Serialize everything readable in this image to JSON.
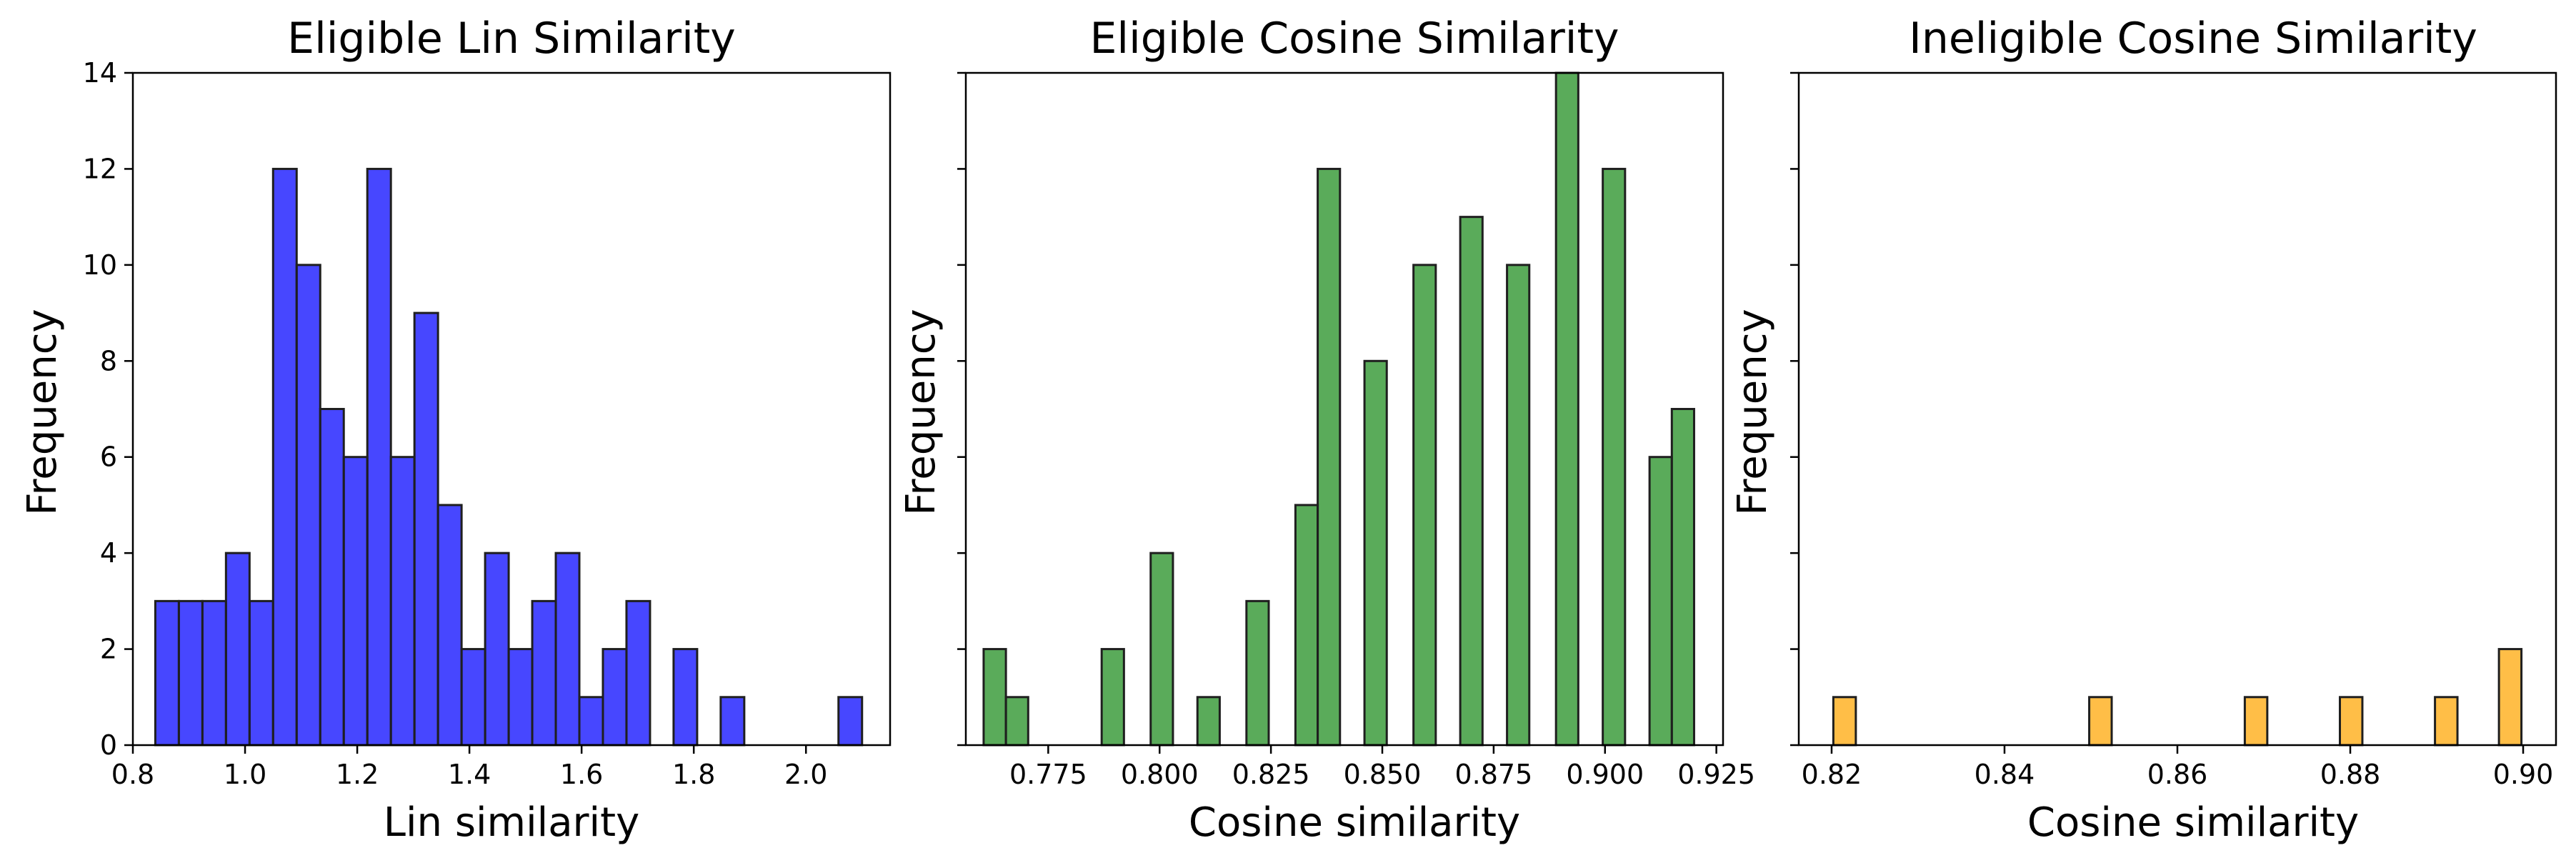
{
  "chart_data": [
    {
      "type": "bar",
      "title": "Eligible Lin Similarity",
      "xlabel": "Lin similarity",
      "ylabel": "Frequency",
      "xlim": [
        0.8,
        2.15
      ],
      "ylim": [
        0,
        14
      ],
      "xticks": [
        "0.8",
        "1.0",
        "1.2",
        "1.4",
        "1.6",
        "1.8",
        "2.0"
      ],
      "xtick_values": [
        0.8,
        1.0,
        1.2,
        1.4,
        1.6,
        1.8,
        2.0
      ],
      "yticks": [
        "0",
        "2",
        "4",
        "6",
        "8",
        "10",
        "12",
        "14"
      ],
      "ytick_values": [
        0,
        2,
        4,
        6,
        8,
        10,
        12,
        14
      ],
      "color": "#0000ff",
      "bins": [
        {
          "x0": 0.84,
          "x1": 0.882,
          "value": 3
        },
        {
          "x0": 0.882,
          "x1": 0.924,
          "value": 3
        },
        {
          "x0": 0.924,
          "x1": 0.966,
          "value": 3
        },
        {
          "x0": 0.966,
          "x1": 1.008,
          "value": 4
        },
        {
          "x0": 1.008,
          "x1": 1.05,
          "value": 3
        },
        {
          "x0": 1.05,
          "x1": 1.092,
          "value": 12
        },
        {
          "x0": 1.092,
          "x1": 1.134,
          "value": 10
        },
        {
          "x0": 1.134,
          "x1": 1.176,
          "value": 7
        },
        {
          "x0": 1.176,
          "x1": 1.218,
          "value": 6
        },
        {
          "x0": 1.218,
          "x1": 1.26,
          "value": 12
        },
        {
          "x0": 1.26,
          "x1": 1.302,
          "value": 6
        },
        {
          "x0": 1.302,
          "x1": 1.344,
          "value": 9
        },
        {
          "x0": 1.344,
          "x1": 1.386,
          "value": 5
        },
        {
          "x0": 1.386,
          "x1": 1.428,
          "value": 2
        },
        {
          "x0": 1.428,
          "x1": 1.47,
          "value": 4
        },
        {
          "x0": 1.47,
          "x1": 1.512,
          "value": 2
        },
        {
          "x0": 1.512,
          "x1": 1.554,
          "value": 3
        },
        {
          "x0": 1.554,
          "x1": 1.596,
          "value": 4
        },
        {
          "x0": 1.596,
          "x1": 1.638,
          "value": 1
        },
        {
          "x0": 1.638,
          "x1": 1.68,
          "value": 2
        },
        {
          "x0": 1.68,
          "x1": 1.722,
          "value": 3
        },
        {
          "x0": 1.764,
          "x1": 1.806,
          "value": 2
        },
        {
          "x0": 1.848,
          "x1": 1.89,
          "value": 1
        },
        {
          "x0": 2.058,
          "x1": 2.1,
          "value": 1
        }
      ]
    },
    {
      "type": "bar",
      "title": "Eligible Cosine Similarity",
      "xlabel": "Cosine similarity",
      "ylabel": "Frequency",
      "xlim": [
        0.7565,
        0.9265
      ],
      "ylim": [
        0,
        14
      ],
      "xticks": [
        "0.775",
        "0.800",
        "0.825",
        "0.850",
        "0.875",
        "0.900",
        "0.925"
      ],
      "xtick_values": [
        0.775,
        0.8,
        0.825,
        0.85,
        0.875,
        0.9,
        0.925
      ],
      "yticks": [],
      "ytick_values": [
        0,
        2,
        4,
        6,
        8,
        10,
        12,
        14
      ],
      "color": "#1a8a1a",
      "bins": [
        {
          "x0": 0.7605,
          "x1": 0.7655,
          "value": 2
        },
        {
          "x0": 0.7655,
          "x1": 0.7705,
          "value": 1
        },
        {
          "x0": 0.787,
          "x1": 0.792,
          "value": 2
        },
        {
          "x0": 0.798,
          "x1": 0.803,
          "value": 4
        },
        {
          "x0": 0.8085,
          "x1": 0.8135,
          "value": 1
        },
        {
          "x0": 0.8195,
          "x1": 0.8245,
          "value": 3
        },
        {
          "x0": 0.8305,
          "x1": 0.8355,
          "value": 5
        },
        {
          "x0": 0.8355,
          "x1": 0.8405,
          "value": 12
        },
        {
          "x0": 0.846,
          "x1": 0.851,
          "value": 8
        },
        {
          "x0": 0.857,
          "x1": 0.862,
          "value": 10
        },
        {
          "x0": 0.8675,
          "x1": 0.8725,
          "value": 11
        },
        {
          "x0": 0.878,
          "x1": 0.883,
          "value": 10
        },
        {
          "x0": 0.889,
          "x1": 0.894,
          "value": 14
        },
        {
          "x0": 0.8995,
          "x1": 0.9045,
          "value": 12
        },
        {
          "x0": 0.91,
          "x1": 0.915,
          "value": 6
        },
        {
          "x0": 0.915,
          "x1": 0.92,
          "value": 7
        }
      ]
    },
    {
      "type": "bar",
      "title": "Ineligible Cosine Similarity",
      "xlabel": "Cosine similarity",
      "ylabel": "Frequency",
      "xlim": [
        0.8162,
        0.9038
      ],
      "ylim": [
        0,
        14
      ],
      "xticks": [
        "0.82",
        "0.84",
        "0.86",
        "0.88",
        "0.90"
      ],
      "xtick_values": [
        0.82,
        0.84,
        0.86,
        0.88,
        0.9
      ],
      "yticks": [],
      "ytick_values": [
        0,
        2,
        4,
        6,
        8,
        10,
        12,
        14
      ],
      "color": "#ffa500",
      "bins": [
        {
          "x0": 0.8202,
          "x1": 0.8228,
          "value": 1
        },
        {
          "x0": 0.8498,
          "x1": 0.8524,
          "value": 1
        },
        {
          "x0": 0.8678,
          "x1": 0.8704,
          "value": 1
        },
        {
          "x0": 0.8788,
          "x1": 0.8814,
          "value": 1
        },
        {
          "x0": 0.8898,
          "x1": 0.8924,
          "value": 1
        },
        {
          "x0": 0.8972,
          "x1": 0.8998,
          "value": 2
        }
      ]
    }
  ]
}
